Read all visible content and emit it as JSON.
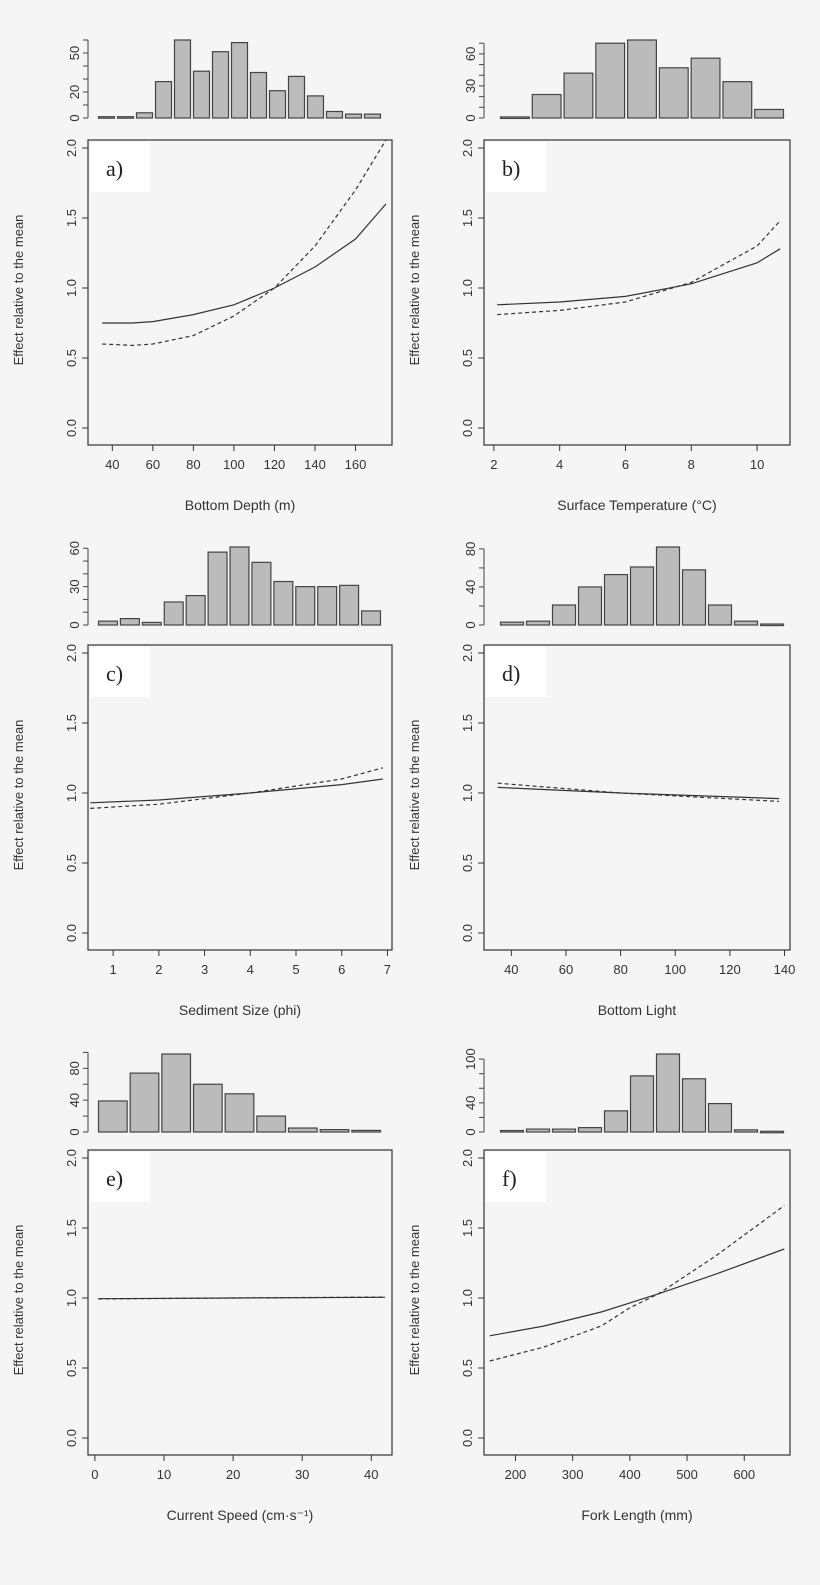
{
  "chart_data": [
    {
      "panel": "a)",
      "type": "line",
      "xlabel": "Bottom Depth (m)",
      "ylabel": "Effect relative to the mean",
      "xticks": [
        40,
        60,
        80,
        100,
        120,
        140,
        160
      ],
      "xlim": [
        28,
        178
      ],
      "ylim": [
        0,
        2
      ],
      "yticks": [
        "0.0",
        "0.5",
        "1.0",
        "1.5",
        "2.0"
      ],
      "series": [
        {
          "style": "solid",
          "x": [
            35,
            50,
            60,
            80,
            100,
            120,
            140,
            160,
            175
          ],
          "y": [
            0.75,
            0.75,
            0.76,
            0.81,
            0.88,
            1.0,
            1.15,
            1.35,
            1.6
          ]
        },
        {
          "style": "dashed",
          "x": [
            35,
            50,
            60,
            80,
            100,
            120,
            140,
            160,
            175
          ],
          "y": [
            0.6,
            0.59,
            0.6,
            0.66,
            0.8,
            1.0,
            1.3,
            1.7,
            2.1
          ]
        }
      ],
      "histogram": {
        "type": "bar",
        "values": [
          1,
          1,
          4,
          28,
          60,
          36,
          51,
          58,
          35,
          21,
          32,
          17,
          5,
          3,
          3
        ],
        "ytick_labels": [
          "0",
          "20",
          "50"
        ],
        "ytick_step": 10,
        "ymax": 60
      }
    },
    {
      "panel": "b)",
      "type": "line",
      "xlabel": "Surface Temperature (°C)",
      "ylabel": "Effect relative to the mean",
      "xticks": [
        2,
        4,
        6,
        8,
        10
      ],
      "xlim": [
        1.7,
        11
      ],
      "ylim": [
        0,
        2
      ],
      "yticks": [
        "0.0",
        "0.5",
        "1.0",
        "1.5",
        "2.0"
      ],
      "series": [
        {
          "style": "solid",
          "x": [
            2.1,
            4,
            6,
            8,
            10,
            10.7
          ],
          "y": [
            0.88,
            0.9,
            0.94,
            1.03,
            1.18,
            1.28
          ]
        },
        {
          "style": "dashed",
          "x": [
            2.1,
            4,
            6,
            8,
            10,
            10.7
          ],
          "y": [
            0.81,
            0.84,
            0.9,
            1.04,
            1.3,
            1.48
          ]
        }
      ],
      "histogram": {
        "type": "bar",
        "values": [
          1,
          22,
          42,
          70,
          73,
          47,
          56,
          34,
          8
        ],
        "ytick_labels": [
          "0",
          "30",
          "60"
        ],
        "ytick_step": 10,
        "ymax": 70
      }
    },
    {
      "panel": "c)",
      "type": "line",
      "xlabel": "Sediment Size (phi)",
      "ylabel": "Effect relative to the mean",
      "xticks": [
        1,
        2,
        3,
        4,
        5,
        6,
        7
      ],
      "xlim": [
        0.45,
        7.1
      ],
      "ylim": [
        0,
        2
      ],
      "yticks": [
        "0.0",
        "0.5",
        "1.0",
        "1.5",
        "2.0"
      ],
      "series": [
        {
          "style": "solid",
          "x": [
            0.5,
            2,
            4,
            6,
            6.9
          ],
          "y": [
            0.93,
            0.95,
            1.0,
            1.06,
            1.1
          ]
        },
        {
          "style": "dashed",
          "x": [
            0.5,
            2,
            4,
            6,
            6.9
          ],
          "y": [
            0.89,
            0.92,
            1.0,
            1.1,
            1.18
          ]
        }
      ],
      "histogram": {
        "type": "bar",
        "values": [
          3,
          5,
          2,
          18,
          23,
          57,
          61,
          49,
          34,
          30,
          30,
          31,
          11
        ],
        "ytick_labels": [
          "0",
          "30",
          "60"
        ],
        "ytick_step": 10,
        "ymax": 60
      }
    },
    {
      "panel": "d)",
      "type": "line",
      "xlabel": "Bottom Light",
      "ylabel": "Effect relative to the mean",
      "xticks": [
        40,
        60,
        80,
        100,
        120,
        140
      ],
      "xlim": [
        30,
        142
      ],
      "ylim": [
        0,
        2
      ],
      "yticks": [
        "0.0",
        "0.5",
        "1.0",
        "1.5",
        "2.0"
      ],
      "series": [
        {
          "style": "solid",
          "x": [
            35,
            80,
            138
          ],
          "y": [
            1.04,
            1.0,
            0.96
          ]
        },
        {
          "style": "dashed",
          "x": [
            35,
            80,
            138
          ],
          "y": [
            1.07,
            1.0,
            0.94
          ]
        }
      ],
      "histogram": {
        "type": "bar",
        "values": [
          3,
          4,
          21,
          40,
          53,
          61,
          82,
          58,
          21,
          4,
          1
        ],
        "ytick_labels": [
          "0",
          "40",
          "80"
        ],
        "ytick_step": 20,
        "ymax": 80
      }
    },
    {
      "panel": "e)",
      "type": "line",
      "xlabel": "Current Speed (cm·s⁻¹)",
      "ylabel": "Effect relative to the mean",
      "xticks": [
        0,
        10,
        20,
        30,
        40
      ],
      "xlim": [
        -1,
        43
      ],
      "ylim": [
        0,
        2
      ],
      "yticks": [
        "0.0",
        "0.5",
        "1.0",
        "1.5",
        "2.0"
      ],
      "series": [
        {
          "style": "solid",
          "x": [
            0.5,
            20,
            42
          ],
          "y": [
            0.995,
            1.0,
            1.005
          ]
        },
        {
          "style": "dashed",
          "x": [
            0.5,
            20,
            42
          ],
          "y": [
            0.993,
            1.0,
            1.007
          ]
        }
      ],
      "histogram": {
        "type": "bar",
        "values": [
          39,
          74,
          98,
          60,
          48,
          20,
          5,
          3,
          2
        ],
        "ytick_labels": [
          "0",
          "40",
          "80"
        ],
        "ytick_step": 20,
        "ymax": 100
      }
    },
    {
      "panel": "f)",
      "type": "line",
      "xlabel": "Fork Length (mm)",
      "ylabel": "Effect relative to the mean",
      "xticks": [
        200,
        300,
        400,
        500,
        600
      ],
      "xlim": [
        145,
        680
      ],
      "ylim": [
        0,
        2
      ],
      "yticks": [
        "0.0",
        "0.5",
        "1.0",
        "1.5",
        "2.0"
      ],
      "series": [
        {
          "style": "solid",
          "x": [
            155,
            250,
            350,
            450,
            550,
            670
          ],
          "y": [
            0.73,
            0.8,
            0.9,
            1.03,
            1.17,
            1.35
          ]
        },
        {
          "style": "dashed",
          "x": [
            155,
            250,
            350,
            400,
            450,
            550,
            670
          ],
          "y": [
            0.55,
            0.65,
            0.8,
            0.93,
            1.03,
            1.3,
            1.66
          ]
        }
      ],
      "histogram": {
        "type": "bar",
        "values": [
          2,
          4,
          4,
          6,
          29,
          77,
          107,
          73,
          39,
          3,
          1
        ],
        "ytick_labels": [
          "0",
          "40",
          "100"
        ],
        "ytick_step": 20,
        "ymax": 100
      }
    }
  ]
}
